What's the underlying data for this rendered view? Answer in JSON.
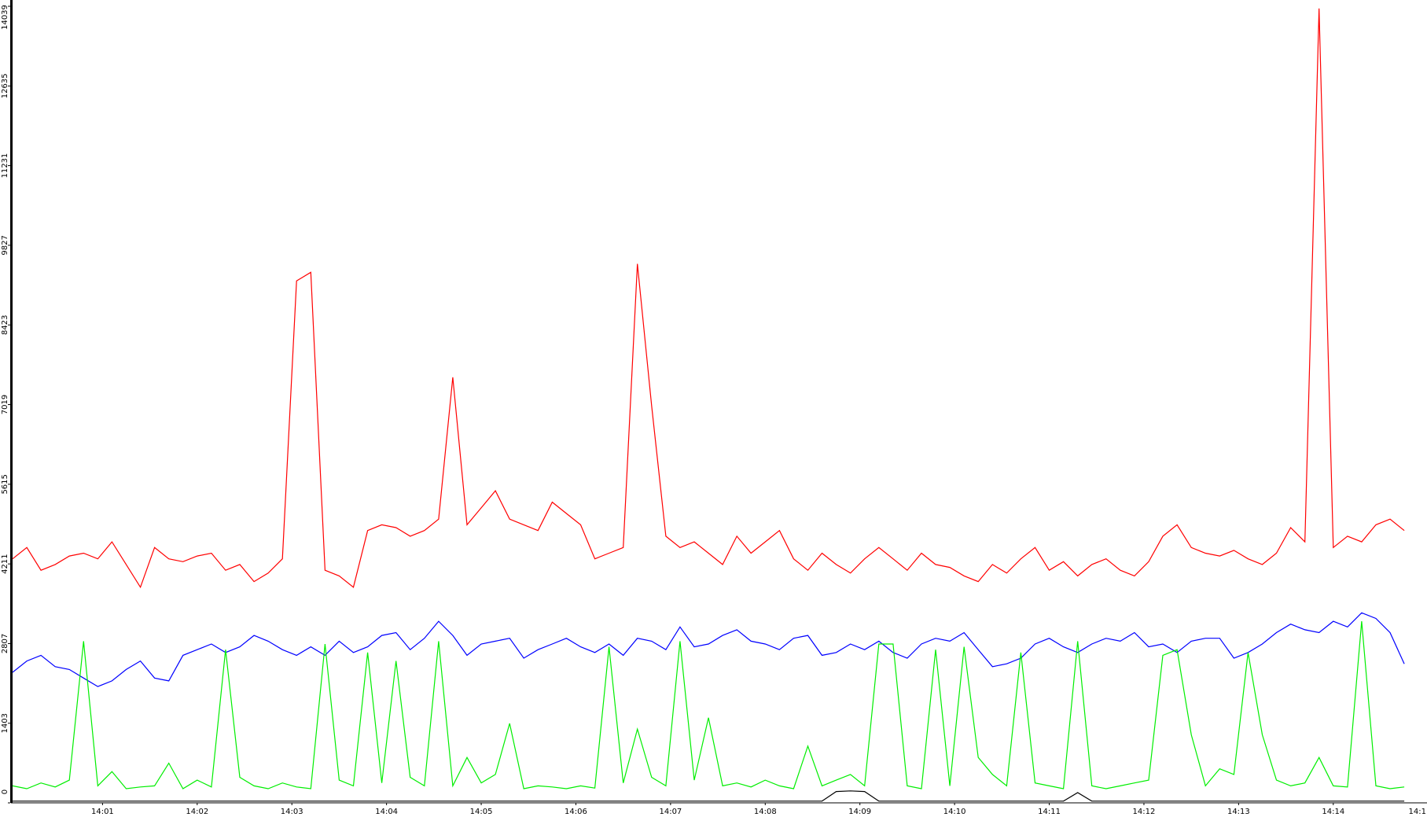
{
  "chart_data": {
    "type": "line",
    "x": [
      0.05,
      0.2,
      0.35,
      0.5,
      0.65,
      0.8,
      0.95,
      1.1,
      1.25,
      1.4,
      1.55,
      1.7,
      1.85,
      2.0,
      2.15,
      2.3,
      2.45,
      2.6,
      2.75,
      2.9,
      3.05,
      3.2,
      3.35,
      3.5,
      3.65,
      3.8,
      3.95,
      4.1,
      4.25,
      4.4,
      4.55,
      4.7,
      4.85,
      5.0,
      5.15,
      5.3,
      5.45,
      5.6,
      5.75,
      5.9,
      6.05,
      6.2,
      6.35,
      6.5,
      6.65,
      6.8,
      6.95,
      7.1,
      7.25,
      7.4,
      7.55,
      7.7,
      7.85,
      8.0,
      8.15,
      8.3,
      8.45,
      8.6,
      8.75,
      8.9,
      9.05,
      9.2,
      9.35,
      9.5,
      9.65,
      9.8,
      9.95,
      10.1,
      10.25,
      10.4,
      10.55,
      10.7,
      10.85,
      11.0,
      11.15,
      11.3,
      11.45,
      11.6,
      11.75,
      11.9,
      12.05,
      12.2,
      12.35,
      12.5,
      12.65,
      12.8,
      12.95,
      13.1,
      13.25,
      13.4,
      13.55,
      13.7,
      13.85,
      14.0,
      14.15,
      14.3,
      14.45,
      14.6,
      14.75
    ],
    "series": [
      {
        "color": "#ff0000",
        "values": [
          4300,
          4500,
          4100,
          4200,
          4350,
          4400,
          4300,
          4600,
          4200,
          3800,
          4500,
          4300,
          4250,
          4350,
          4400,
          4100,
          4200,
          3900,
          4050,
          4300,
          9200,
          9350,
          4100,
          4000,
          3800,
          4800,
          4900,
          4850,
          4700,
          4800,
          5000,
          7500,
          4900,
          5200,
          5500,
          5000,
          4900,
          4800,
          5300,
          5100,
          4900,
          4300,
          4400,
          4500,
          9500,
          7000,
          4700,
          4500,
          4600,
          4400,
          4200,
          4700,
          4400,
          4600,
          4800,
          4300,
          4100,
          4400,
          4200,
          4050,
          4300,
          4500,
          4300,
          4100,
          4400,
          4200,
          4150,
          4000,
          3900,
          4200,
          4050,
          4300,
          4500,
          4100,
          4250,
          4000,
          4200,
          4300,
          4100,
          4000,
          4250,
          4700,
          4900,
          4500,
          4400,
          4350,
          4450,
          4300,
          4200,
          4400,
          4850,
          4600,
          14000,
          4500,
          4700,
          4600,
          4900,
          5000,
          4800
        ]
      },
      {
        "color": "#0000ff",
        "values": [
          2300,
          2500,
          2600,
          2400,
          2350,
          2200,
          2050,
          2150,
          2350,
          2500,
          2200,
          2150,
          2600,
          2700,
          2800,
          2650,
          2750,
          2950,
          2850,
          2700,
          2600,
          2750,
          2600,
          2850,
          2650,
          2750,
          2950,
          3000,
          2700,
          2900,
          3200,
          2950,
          2600,
          2800,
          2850,
          2900,
          2550,
          2700,
          2800,
          2900,
          2750,
          2650,
          2800,
          2600,
          2900,
          2850,
          2700,
          3100,
          2750,
          2800,
          2950,
          3050,
          2850,
          2800,
          2700,
          2900,
          2950,
          2600,
          2650,
          2800,
          2700,
          2850,
          2650,
          2550,
          2800,
          2900,
          2850,
          3000,
          2700,
          2400,
          2450,
          2550,
          2800,
          2900,
          2750,
          2650,
          2800,
          2900,
          2850,
          3000,
          2750,
          2800,
          2650,
          2850,
          2900,
          2900,
          2550,
          2650,
          2800,
          3000,
          3150,
          3050,
          3000,
          3200,
          3100,
          3350,
          3250,
          3000,
          2450
        ]
      },
      {
        "color": "#00ee00",
        "values": [
          300,
          250,
          350,
          280,
          400,
          2850,
          300,
          550,
          250,
          280,
          300,
          700,
          250,
          400,
          280,
          2700,
          450,
          300,
          250,
          350,
          280,
          250,
          2800,
          400,
          300,
          2650,
          350,
          2500,
          450,
          300,
          2850,
          300,
          800,
          350,
          500,
          1400,
          250,
          300,
          280,
          250,
          300,
          260,
          2750,
          350,
          1300,
          450,
          300,
          2850,
          400,
          1500,
          300,
          350,
          280,
          400,
          300,
          250,
          1000,
          300,
          400,
          500,
          300,
          2800,
          2800,
          300,
          250,
          2700,
          300,
          2750,
          800,
          500,
          300,
          2650,
          350,
          300,
          250,
          2850,
          300,
          250,
          300,
          350,
          400,
          2600,
          2700,
          1200,
          300,
          600,
          500,
          2650,
          1200,
          400,
          300,
          350,
          800,
          300,
          280,
          3200,
          300,
          250,
          280
        ]
      },
      {
        "color": "#000000",
        "values": [
          30,
          30,
          30,
          30,
          30,
          30,
          30,
          30,
          30,
          30,
          30,
          30,
          30,
          30,
          30,
          30,
          30,
          30,
          30,
          30,
          30,
          30,
          30,
          30,
          30,
          30,
          30,
          30,
          30,
          30,
          30,
          30,
          30,
          30,
          30,
          30,
          30,
          30,
          30,
          30,
          30,
          30,
          30,
          30,
          30,
          30,
          30,
          30,
          30,
          30,
          30,
          30,
          30,
          30,
          30,
          30,
          30,
          30,
          200,
          210,
          200,
          30,
          30,
          30,
          30,
          30,
          30,
          30,
          30,
          30,
          30,
          30,
          30,
          30,
          30,
          180,
          30,
          30,
          30,
          30,
          30,
          30,
          30,
          30,
          30,
          30,
          30,
          30,
          30,
          30,
          30,
          30,
          30,
          30,
          30,
          30,
          30,
          30,
          30
        ]
      }
    ],
    "xlim": [
      0.05,
      14.99
    ],
    "xticks": [
      {
        "value": 1,
        "label": "14:01"
      },
      {
        "value": 2,
        "label": "14:02"
      },
      {
        "value": 3,
        "label": "14:03"
      },
      {
        "value": 4,
        "label": "14:04"
      },
      {
        "value": 5,
        "label": "14:05"
      },
      {
        "value": 6,
        "label": "14:06"
      },
      {
        "value": 7,
        "label": "14:07"
      },
      {
        "value": 8,
        "label": "14:08"
      },
      {
        "value": 9,
        "label": "14:09"
      },
      {
        "value": 10,
        "label": "14:10"
      },
      {
        "value": 11,
        "label": "14:11"
      },
      {
        "value": 12,
        "label": "14:12"
      },
      {
        "value": 13,
        "label": "14:13"
      },
      {
        "value": 14,
        "label": "14:14"
      },
      {
        "value": 15,
        "label": "14:1"
      }
    ],
    "ylim": [
      0,
      14039
    ],
    "yticks": [
      0,
      1403,
      2807,
      4211,
      5615,
      7019,
      8423,
      9827,
      11231,
      12635,
      14039
    ]
  }
}
